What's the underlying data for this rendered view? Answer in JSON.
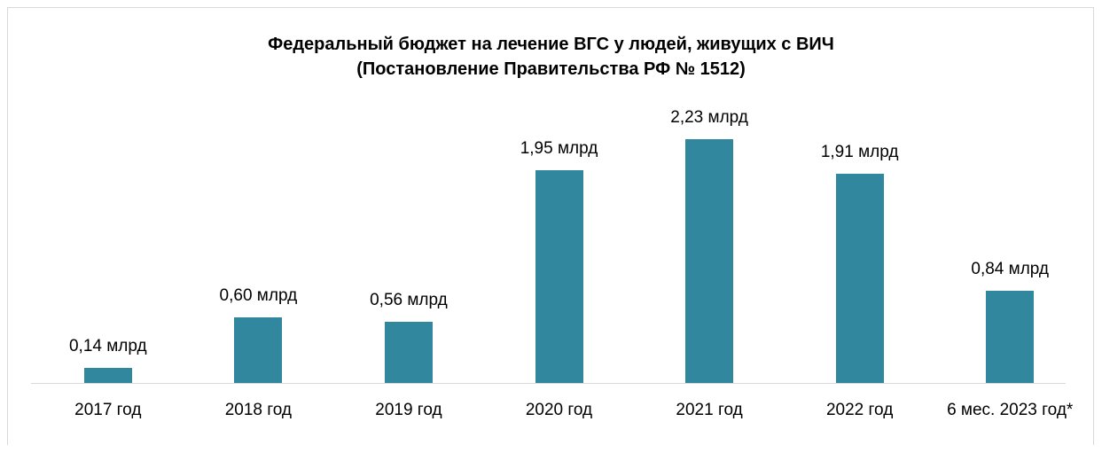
{
  "chart_data": {
    "type": "bar",
    "title": "Федеральный бюджет на лечение ВГС у людей, живущих с ВИЧ",
    "subtitle": "(Постановление Правительства РФ № 1512)",
    "categories": [
      "2017 год",
      "2018 год",
      "2019 год",
      "2020 год",
      "2021 год",
      "2022 год",
      "6 мес. 2023 год*"
    ],
    "values": [
      0.14,
      0.6,
      0.56,
      1.95,
      2.23,
      1.91,
      0.84
    ],
    "value_labels": [
      "0,14 млрд",
      "0,60 млрд",
      "0,56 млрд",
      "1,95 млрд",
      "2,23 млрд",
      "1,91 млрд",
      "0,84 млрд"
    ],
    "color": "#31889e"
  }
}
